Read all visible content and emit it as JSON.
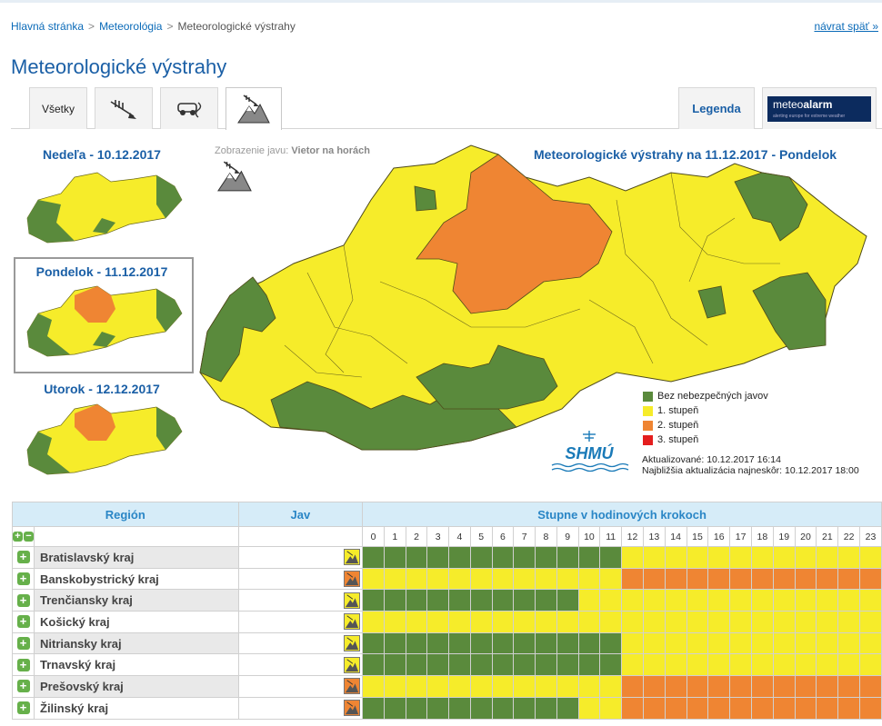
{
  "breadcrumb": {
    "home": "Hlavná stránka",
    "section": "Meteorológia",
    "current": "Meteorologické výstrahy",
    "back": "návrat späť »",
    "sep": ">"
  },
  "page_title": "Meteorologické výstrahy",
  "tabs": {
    "all": "Všetky",
    "legend": "Legenda",
    "meteoalarm_a": "meteo",
    "meteoalarm_b": "alarm",
    "meteoalarm_sub": "alerting europe for extreme weather"
  },
  "mini_maps": [
    {
      "label": "Nedeľa - 10.12.2017"
    },
    {
      "label": "Pondelok - 11.12.2017"
    },
    {
      "label": "Utorok - 12.12.2017"
    }
  ],
  "phenomenon": {
    "prefix": "Zobrazenie javu:",
    "name": "Vietor na horách"
  },
  "map_title": "Meteorologické výstrahy na 11.12.2017 - Pondelok",
  "legend": [
    {
      "label": "Bez nebezpečných javov",
      "color": "#5a8a3c"
    },
    {
      "label": "1. stupeň",
      "color": "#f6ec2a"
    },
    {
      "label": "2. stupeň",
      "color": "#ef8533"
    },
    {
      "label": "3. stupeň",
      "color": "#e41e1e"
    }
  ],
  "logo": "SHMÚ",
  "updated": "Aktualizované: 10.12.2017 16:14",
  "next_update": "Najbližšia aktualizácia najneskôr: 10.12.2017 18:00",
  "table": {
    "col_region": "Región",
    "col_jav": "Jav",
    "col_steps": "Stupne v hodinových krokoch",
    "hours": [
      "0",
      "1",
      "2",
      "3",
      "4",
      "5",
      "6",
      "7",
      "8",
      "9",
      "10",
      "11",
      "12",
      "13",
      "14",
      "15",
      "16",
      "17",
      "18",
      "19",
      "20",
      "21",
      "22",
      "23"
    ],
    "rows": [
      {
        "name": "Bratislavský kraj",
        "level": 1,
        "cells": "ggggggggggggyyyyyyyyyyyy"
      },
      {
        "name": "Banskobystrický kraj",
        "level": 2,
        "cells": "yyyyyyyyyyyyoooooooooooo"
      },
      {
        "name": "Trenčiansky kraj",
        "level": 1,
        "cells": "ggggggggggyyyyyyyyyyyyyy"
      },
      {
        "name": "Košický kraj",
        "level": 1,
        "cells": "yyyyyyyyyyyyyyyyyyyyyyyy"
      },
      {
        "name": "Nitriansky kraj",
        "level": 1,
        "cells": "ggggggggggggyyyyyyyyyyyy"
      },
      {
        "name": "Trnavský kraj",
        "level": 1,
        "cells": "ggggggggggggyyyyyyyyyyyy"
      },
      {
        "name": "Prešovský kraj",
        "level": 2,
        "cells": "yyyyyyyyyyyyoooooooooooo"
      },
      {
        "name": "Žilinský kraj",
        "level": 2,
        "cells": "ggggggggggyyoooooooooooo"
      }
    ]
  }
}
